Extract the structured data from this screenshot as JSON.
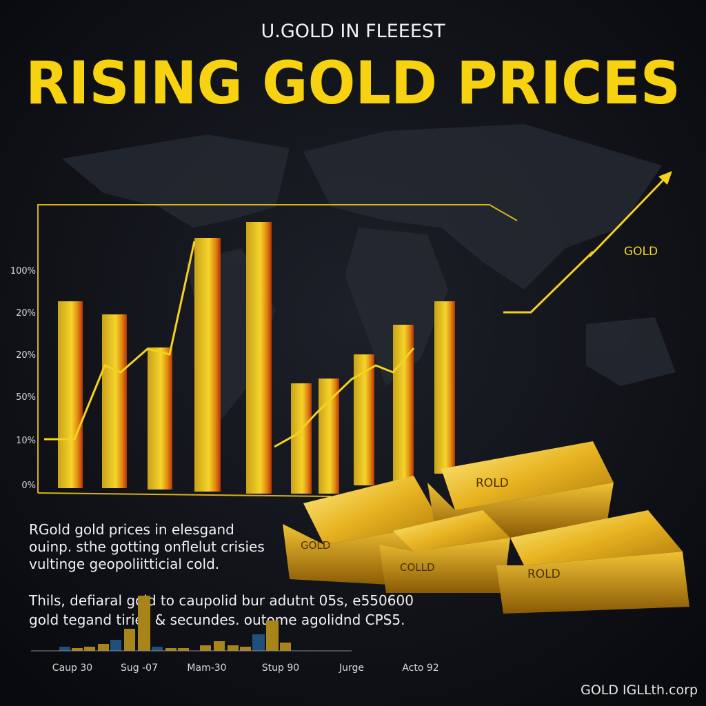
{
  "header": {
    "subtitle": "U.GOLD IN FLEEEST",
    "title": "RISING GOLD PRICES"
  },
  "axis_labels": [
    "100%",
    "20%",
    "20%",
    "50%",
    "10%",
    "0%"
  ],
  "arrow_label": "GOLD",
  "gold_bars": [
    "ROLD",
    "GOLD",
    "COLLD",
    "ROLD"
  ],
  "paragraph_1": [
    "RGold gold prices in elesgand",
    "ouinp. sthe gotting onflelut crisies",
    "vultinge geopoliitticial cold."
  ],
  "paragraph_2": [
    "Thils, defiaral gold to caupolid bur adutnt 05s, e550600",
    "gold tegand tiries & secundes. outome agolidnd CPS5."
  ],
  "timeline_labels": [
    "Caup 30",
    "Sug -07",
    "Mam-30",
    "Stup 90",
    "Jurge",
    "Acto 92"
  ],
  "footer": "GOLD IGLLth.corp"
}
